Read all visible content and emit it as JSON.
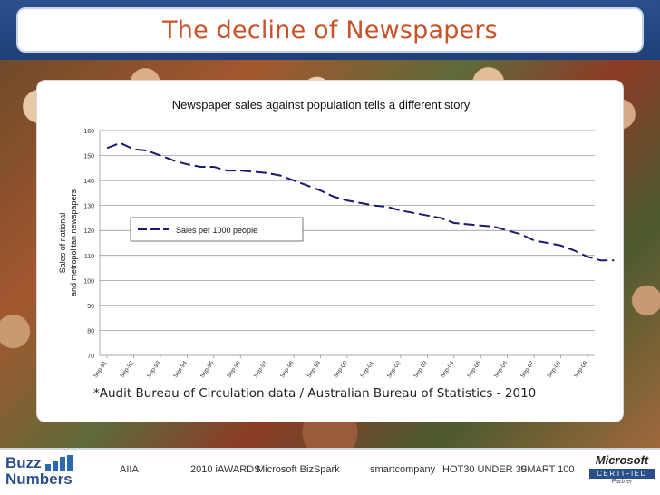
{
  "page": {
    "title": "The decline of Newspapers"
  },
  "source_note": "*Audit Bureau of Circulation data / Australian Bureau of Statistics - 2010",
  "chart_data": {
    "type": "line",
    "title": "Newspaper sales against population tells a different story",
    "ylabel": "Sales of national and metropolitan newspapers",
    "xlabel": "",
    "ylim": [
      70,
      160
    ],
    "yticks": [
      70,
      80,
      90,
      100,
      110,
      120,
      130,
      140,
      150,
      160
    ],
    "grid": "horizontal",
    "legend": {
      "position": "middle-left",
      "entries": [
        "Sales per 1000 people"
      ]
    },
    "categories": [
      "Sep-91",
      "Sep-92",
      "Sep-93",
      "Sep-94",
      "Sep-95",
      "Sep-96",
      "Sep-97",
      "Sep-98",
      "Sep-99",
      "Sep-00",
      "Sep-01",
      "Sep-02",
      "Sep-03",
      "Sep-04",
      "Sep-05",
      "Sep-06",
      "Sep-07",
      "Sep-08",
      "Sep-09"
    ],
    "series": [
      {
        "name": "Sales per 1000 people",
        "color": "#1a1a6e",
        "x": [
          0,
          0.5,
          1,
          1.5,
          2,
          2.5,
          3,
          3.5,
          4,
          4.5,
          5,
          5.5,
          6,
          6.5,
          7,
          7.5,
          8,
          8.5,
          9,
          9.5,
          10,
          10.5,
          11,
          11.5,
          12,
          12.5,
          13,
          13.5,
          14,
          14.5,
          15,
          15.5,
          16,
          16.5,
          17,
          17.5,
          18,
          18.5,
          19
        ],
        "values": [
          153,
          155,
          152.5,
          152,
          150,
          148,
          146.5,
          145.5,
          145.5,
          144,
          144,
          143.5,
          143,
          142,
          140,
          138,
          136,
          133.5,
          132,
          131,
          130,
          129.5,
          128,
          127,
          126,
          125,
          123,
          122.5,
          122,
          121.5,
          120,
          118.5,
          116,
          115,
          114,
          112,
          109.5,
          108,
          108
        ]
      }
    ]
  },
  "footer": {
    "brand_line1": "Buzz",
    "brand_line2": "Numbers",
    "partners": [
      "AIIA",
      "2010 iAWARDS",
      "Microsoft BizSpark",
      "smartcompany",
      "HOT30 UNDER 30",
      "SMART 100"
    ],
    "ms_name": "Microsoft",
    "ms_cert": "CERTIFIED",
    "ms_partner": "Partner"
  }
}
